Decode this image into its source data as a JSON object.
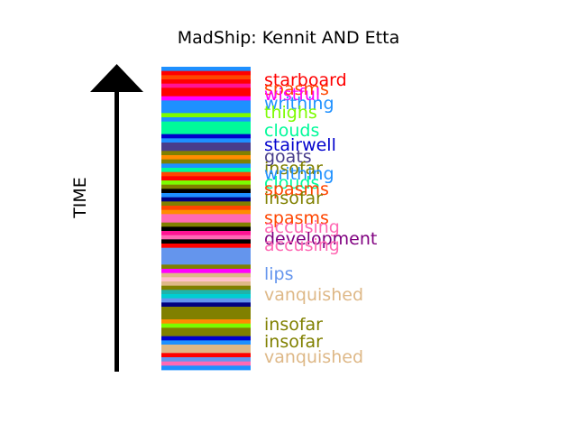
{
  "chart_data": {
    "type": "timeline",
    "title": "MadShip: Kennit AND Etta",
    "ylabel": "TIME",
    "stripes_top_to_bottom": [
      "#1e90ff",
      "#ff0000",
      "#ff4500",
      "#ff0000",
      "#ff1493",
      "#ff0000",
      "#ff0000",
      "#ff00ff",
      "#1e90ff",
      "#1e90ff",
      "#1e90ff",
      "#7cfc00",
      "#1e90ff",
      "#00fa9a",
      "#00fa9a",
      "#00fa9a",
      "#0000cd",
      "#1e90ff",
      "#483d8b",
      "#483d8b",
      "#808000",
      "#ff8c00",
      "#808000",
      "#1e90ff",
      "#00fa9a",
      "#ff4500",
      "#ff0000",
      "#7cfc00",
      "#808000",
      "#000000",
      "#1e90ff",
      "#000080",
      "#808000",
      "#ff4500",
      "#ff8c00",
      "#ff69b4",
      "#ff69b4",
      "#808000",
      "#000000",
      "#ff1493",
      "#ff69b4",
      "#000000",
      "#ff0000",
      "#6495ed",
      "#6495ed",
      "#6495ed",
      "#6495ed",
      "#808000",
      "#ff00ff",
      "#deb887",
      "#ffc0cb",
      "#deb887",
      "#808000",
      "#20b2aa",
      "#00ced1",
      "#6495ed",
      "#000080",
      "#808000",
      "#808000",
      "#808000",
      "#ff8c00",
      "#7cfc00",
      "#808000",
      "#808000",
      "#0000cd",
      "#1e90ff",
      "#deb887",
      "#deb887",
      "#ff0000",
      "#6495ed",
      "#ff69b4",
      "#1e90ff"
    ],
    "events": [
      {
        "label": "starboard",
        "color": "#ff0000"
      },
      {
        "label": "spasms",
        "color": "#ff4500"
      },
      {
        "label": "wistful",
        "color": "#ff00ff"
      },
      {
        "label": "writhing",
        "color": "#1e90ff"
      },
      {
        "label": "thighs",
        "color": "#7cfc00"
      },
      {
        "label": "clouds",
        "color": "#00fa9a"
      },
      {
        "label": "stairwell",
        "color": "#0000cd"
      },
      {
        "label": "goats",
        "color": "#483d8b"
      },
      {
        "label": "insofar",
        "color": "#808000"
      },
      {
        "label": "writhing",
        "color": "#1e90ff"
      },
      {
        "label": "clouds",
        "color": "#00fa9a"
      },
      {
        "label": "spasms",
        "color": "#ff4500"
      },
      {
        "label": "insofar",
        "color": "#808000"
      },
      {
        "label": "spasms",
        "color": "#ff4500"
      },
      {
        "label": "accusing",
        "color": "#ff69b4"
      },
      {
        "label": "development",
        "color": "#800080"
      },
      {
        "label": "accusing",
        "color": "#ff69b4"
      },
      {
        "label": "lips",
        "color": "#6495ed"
      },
      {
        "label": "vanquished",
        "color": "#deb887"
      },
      {
        "label": "insofar",
        "color": "#808000"
      },
      {
        "label": "insofar",
        "color": "#808000"
      },
      {
        "label": "vanquished",
        "color": "#deb887"
      }
    ]
  }
}
